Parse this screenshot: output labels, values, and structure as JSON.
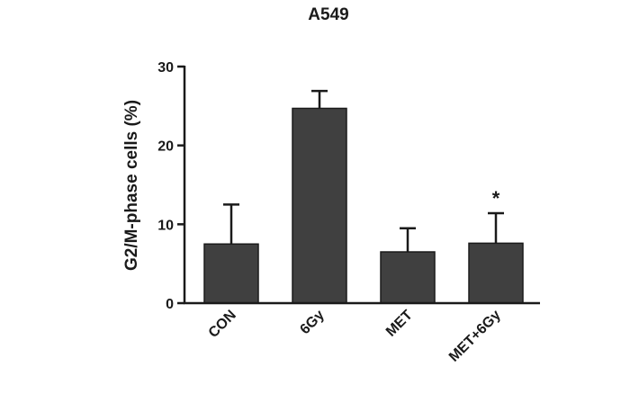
{
  "chart_data": {
    "type": "bar",
    "title": "A549",
    "ylabel": "G2/M-phase cells (%)",
    "xlabel": "",
    "categories": [
      "CON",
      "6Gy",
      "MET",
      "MET+6Gy"
    ],
    "values": [
      7.5,
      24.7,
      6.5,
      7.6
    ],
    "errors": [
      5.0,
      2.2,
      3.0,
      3.8
    ],
    "annotations": [
      "",
      "",
      "",
      "*"
    ],
    "ylim": [
      0,
      30
    ],
    "yticks": [
      "0",
      "10",
      "20",
      "30"
    ],
    "grid": false,
    "legend": "none",
    "bar_color": "#404040",
    "axis_color": "#1a1a1a"
  }
}
